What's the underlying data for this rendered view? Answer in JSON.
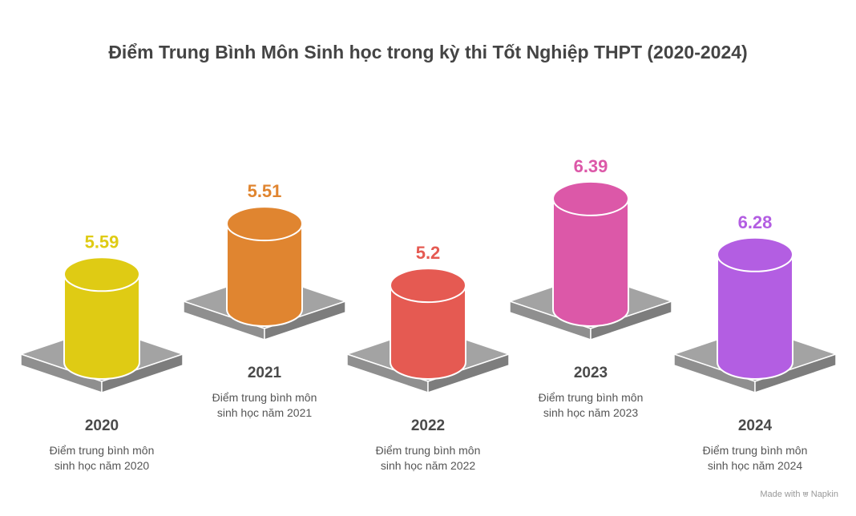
{
  "chart_data": {
    "type": "bar",
    "title": "Điểm Trung Bình Môn Sinh học trong kỳ thi Tốt Nghiệp THPT (2020-2024)",
    "categories": [
      "2020",
      "2021",
      "2022",
      "2023",
      "2024"
    ],
    "values": [
      5.59,
      5.51,
      5.2,
      6.39,
      6.28
    ],
    "value_labels": [
      "5.59",
      "5.51",
      "5.2",
      "6.39",
      "6.28"
    ],
    "colors": [
      "#dfcb14",
      "#e08530",
      "#e55a52",
      "#dc58a8",
      "#b35ee2"
    ],
    "descriptions": [
      [
        "Điểm trung bình môn",
        "sinh học năm 2020"
      ],
      [
        "Điểm trung bình môn",
        "sinh học năm 2021"
      ],
      [
        "Điểm trung bình môn",
        "sinh học năm 2022"
      ],
      [
        "Điểm trung bình môn",
        "sinh học năm 2023"
      ],
      [
        "Điểm trung bình môn",
        "sinh học năm 2024"
      ]
    ],
    "xlabel": "",
    "ylabel": "",
    "grid": false,
    "legend": "none"
  },
  "watermark": {
    "prefix": "Made with",
    "brand": "Napkin",
    "icon": "napkin-logo-icon"
  }
}
